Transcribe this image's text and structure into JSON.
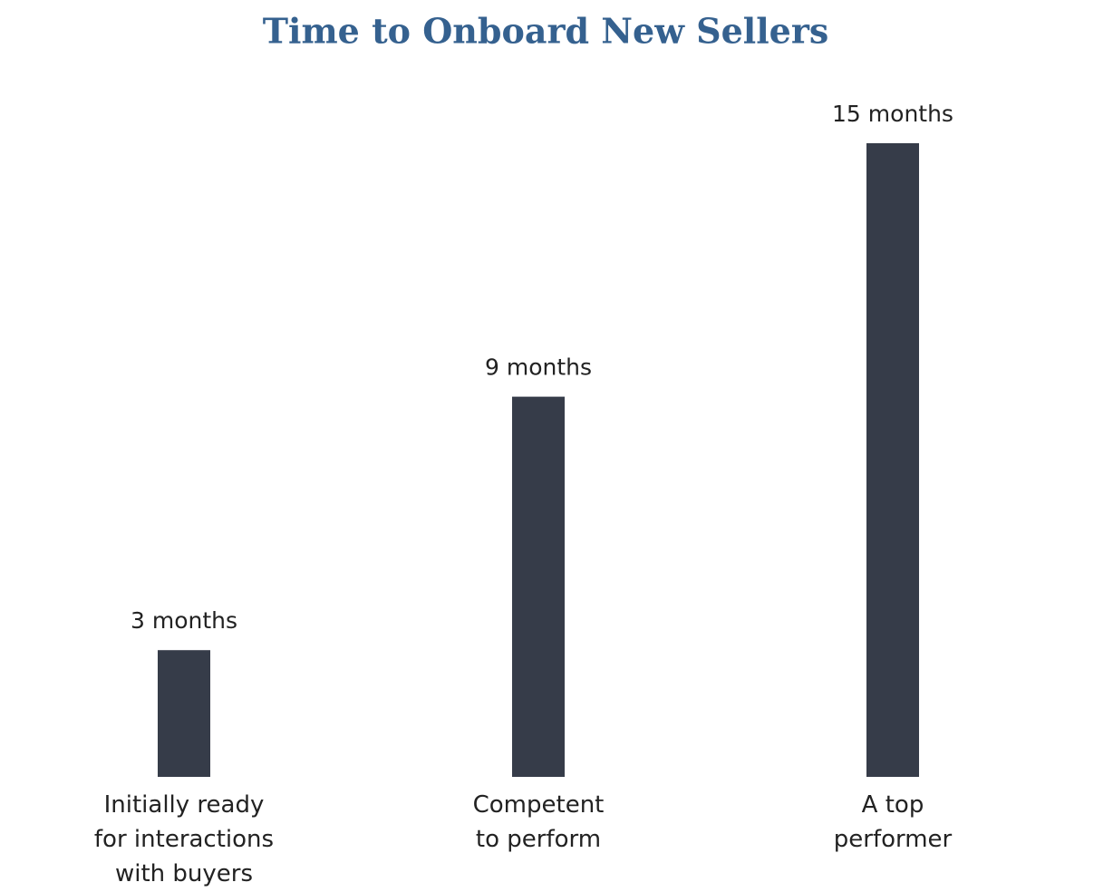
{
  "chart_data": {
    "type": "bar",
    "title": "Time to Onboard New Sellers",
    "categories": [
      "Initially ready\nfor interactions\nwith buyers",
      "Competent\nto perform",
      "A top\nperformer"
    ],
    "values": [
      3,
      9,
      15
    ],
    "value_labels": [
      "3 months",
      "9 months",
      "15 months"
    ],
    "color": "#363c49"
  }
}
